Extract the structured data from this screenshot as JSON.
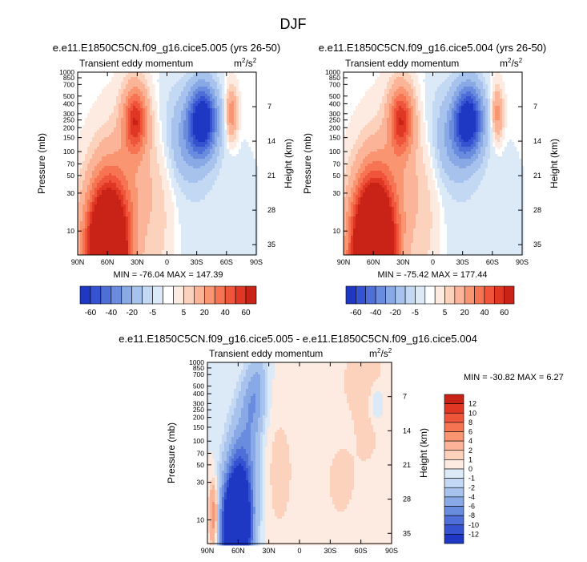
{
  "figure": {
    "title": "DJF",
    "quantity_label": "Transient eddy momentum",
    "units_base": "m",
    "units_exp1": "2",
    "units_sep": "/s",
    "units_exp2": "2"
  },
  "colors": {
    "pos": [
      "#fdeae0",
      "#fcd2bd",
      "#fcb498",
      "#fa9572",
      "#f67452",
      "#ef553b",
      "#e03725",
      "#c92318",
      "#aa1510",
      "#8b0a06"
    ],
    "neg": [
      "#dceaf8",
      "#c2d8f3",
      "#a6c2ed",
      "#88a8e6",
      "#6a8cde",
      "#4f6fd8",
      "#3553d1",
      "#1e38c4",
      "#0f22a8",
      "#04148c"
    ],
    "zero": "#ffffff"
  },
  "chart_data": [
    {
      "type": "contour",
      "id": "a",
      "title": "e.e11.E1850C5CN.f09_g16.cice5.005 (yrs 26-50)",
      "ylabel": "Pressure (mb)",
      "ylabel_right": "Height (km)",
      "xlim": [
        90,
        -90
      ],
      "ylim": [
        1000,
        5
      ],
      "yscale": "log",
      "xticks": [
        {
          "v": 90,
          "l": "90N"
        },
        {
          "v": 60,
          "l": "60N"
        },
        {
          "v": 30,
          "l": "30N"
        },
        {
          "v": 0,
          "l": "0"
        },
        {
          "v": -30,
          "l": "30S"
        },
        {
          "v": -60,
          "l": "60S"
        },
        {
          "v": -90,
          "l": "90S"
        }
      ],
      "yticks": [
        10,
        30,
        50,
        70,
        100,
        150,
        200,
        250,
        300,
        400,
        500,
        700,
        850,
        1000
      ],
      "yticks_right": [
        {
          "km": 35,
          "l": "35"
        },
        {
          "km": 28,
          "l": "28"
        },
        {
          "km": 21,
          "l": "21"
        },
        {
          "km": 14,
          "l": "14"
        },
        {
          "km": 7,
          "l": "7"
        }
      ],
      "min": -76.04,
      "max": 147.39,
      "stats_text": "MIN = -76.04   MAX = 147.39",
      "levels": [
        -60,
        -50,
        -40,
        -30,
        -20,
        -10,
        -5,
        -1,
        1,
        5,
        10,
        20,
        30,
        40,
        50,
        60
      ],
      "features": [
        {
          "lat": 60,
          "p": 5,
          "amp": 150,
          "sx": 14,
          "sy": 1.35
        },
        {
          "lat": 35,
          "p": 40,
          "amp": 14,
          "sx": 20,
          "sy": 1.4
        },
        {
          "lat": 32,
          "p": 250,
          "amp": 55,
          "sx": 8,
          "sy": 0.65
        },
        {
          "lat": -36,
          "p": 250,
          "amp": -76,
          "sx": 10,
          "sy": 0.7
        },
        {
          "lat": -20,
          "p": 130,
          "amp": -18,
          "sx": 12,
          "sy": 0.8
        },
        {
          "lat": -65,
          "p": 300,
          "amp": 28,
          "sx": 4,
          "sy": 0.5
        },
        {
          "lat": 5,
          "p": 8,
          "amp": 5,
          "sx": 12,
          "sy": 1.5
        },
        {
          "lat": -40,
          "p": 15,
          "amp": -4,
          "sx": 35,
          "sy": 1.8
        },
        {
          "lat": -5,
          "p": 400,
          "amp": -4,
          "sx": 12,
          "sy": 1.0
        }
      ],
      "colorbar": {
        "ticks": [
          "-60",
          "-40",
          "-20",
          "-5",
          "5",
          "20",
          "40",
          "60"
        ]
      }
    },
    {
      "type": "contour",
      "id": "b",
      "title": "e.e11.E1850C5CN.f09_g16.cice5.004 (yrs 26-50)",
      "ylabel": "Pressure (mb)",
      "ylabel_right": "Height (km)",
      "xlim": [
        90,
        -90
      ],
      "ylim": [
        1000,
        5
      ],
      "yscale": "log",
      "xticks": [
        {
          "v": 90,
          "l": "90N"
        },
        {
          "v": 60,
          "l": "60N"
        },
        {
          "v": 30,
          "l": "30N"
        },
        {
          "v": 0,
          "l": "0"
        },
        {
          "v": -30,
          "l": "30S"
        },
        {
          "v": -60,
          "l": "60S"
        },
        {
          "v": -90,
          "l": "90S"
        }
      ],
      "yticks": [
        10,
        30,
        50,
        70,
        100,
        150,
        200,
        250,
        300,
        400,
        500,
        700,
        850,
        1000
      ],
      "yticks_right": [
        {
          "km": 35,
          "l": "35"
        },
        {
          "km": 28,
          "l": "28"
        },
        {
          "km": 21,
          "l": "21"
        },
        {
          "km": 14,
          "l": "14"
        },
        {
          "km": 7,
          "l": "7"
        }
      ],
      "min": -75.42,
      "max": 177.44,
      "stats_text": "MIN = -75.42   MAX = 177.44",
      "levels": [
        -60,
        -50,
        -40,
        -30,
        -20,
        -10,
        -5,
        -1,
        1,
        5,
        10,
        20,
        30,
        40,
        50,
        60
      ],
      "features": [
        {
          "lat": 60,
          "p": 5,
          "amp": 177,
          "sx": 14,
          "sy": 1.35
        },
        {
          "lat": 35,
          "p": 40,
          "amp": 14,
          "sx": 20,
          "sy": 1.4
        },
        {
          "lat": 32,
          "p": 250,
          "amp": 55,
          "sx": 8,
          "sy": 0.65
        },
        {
          "lat": -36,
          "p": 250,
          "amp": -75,
          "sx": 10,
          "sy": 0.7
        },
        {
          "lat": -20,
          "p": 130,
          "amp": -18,
          "sx": 12,
          "sy": 0.8
        },
        {
          "lat": -65,
          "p": 300,
          "amp": 25,
          "sx": 4,
          "sy": 0.5
        },
        {
          "lat": 5,
          "p": 8,
          "amp": 5,
          "sx": 12,
          "sy": 1.5
        },
        {
          "lat": -40,
          "p": 15,
          "amp": -4,
          "sx": 35,
          "sy": 1.8
        },
        {
          "lat": -5,
          "p": 400,
          "amp": -4,
          "sx": 12,
          "sy": 1.0
        }
      ],
      "colorbar": {
        "ticks": [
          "-60",
          "-40",
          "-20",
          "-5",
          "5",
          "20",
          "40",
          "60"
        ]
      }
    },
    {
      "type": "contour",
      "id": "c",
      "title": "e.e11.E1850C5CN.f09_g16.cice5.005 - e.e11.E1850C5CN.f09_g16.cice5.004",
      "ylabel": "Pressure (mb)",
      "ylabel_right": "Height (km)",
      "xlim": [
        90,
        -90
      ],
      "ylim": [
        1000,
        5
      ],
      "yscale": "log",
      "xticks": [
        {
          "v": 90,
          "l": "90N"
        },
        {
          "v": 60,
          "l": "60N"
        },
        {
          "v": 30,
          "l": "30N"
        },
        {
          "v": 0,
          "l": "0"
        },
        {
          "v": -30,
          "l": "30S"
        },
        {
          "v": -60,
          "l": "60S"
        },
        {
          "v": -90,
          "l": "90S"
        }
      ],
      "yticks": [
        10,
        30,
        50,
        70,
        100,
        150,
        200,
        250,
        300,
        400,
        500,
        700,
        850,
        1000
      ],
      "yticks_right": [
        {
          "km": 35,
          "l": "35"
        },
        {
          "km": 28,
          "l": "28"
        },
        {
          "km": 21,
          "l": "21"
        },
        {
          "km": 14,
          "l": "14"
        },
        {
          "km": 7,
          "l": "7"
        }
      ],
      "min": -30.82,
      "max": 6.27,
      "stats_text": "MIN = -30.82  MAX =  6.27",
      "levels": [
        -12,
        -10,
        -8,
        -6,
        -4,
        -2,
        -1,
        0,
        1,
        2,
        4,
        6,
        8,
        10,
        12
      ],
      "features": [
        {
          "lat": 84,
          "p": 11,
          "amp": 6.3,
          "sx": 3,
          "sy": 0.7
        },
        {
          "lat": 62,
          "p": 7,
          "amp": -30,
          "sx": 9,
          "sy": 1.1
        },
        {
          "lat": 55,
          "p": 40,
          "amp": -7,
          "sx": 10,
          "sy": 1.2
        },
        {
          "lat": 45,
          "p": 300,
          "amp": -5,
          "sx": 8,
          "sy": 0.7
        },
        {
          "lat": 40,
          "p": 700,
          "amp": -2,
          "sx": 6,
          "sy": 0.5
        },
        {
          "lat": 20,
          "p": 40,
          "amp": 1.5,
          "sx": 12,
          "sy": 1.5
        },
        {
          "lat": -40,
          "p": 30,
          "amp": 1.2,
          "sx": 18,
          "sy": 1.4
        },
        {
          "lat": -70,
          "p": 200,
          "amp": 1.1,
          "sx": 10,
          "sy": 1.2
        },
        {
          "lat": -60,
          "p": 700,
          "amp": 1.2,
          "sx": 20,
          "sy": 0.9
        },
        {
          "lat": -75,
          "p": 300,
          "amp": -2.5,
          "sx": 5,
          "sy": 0.4
        }
      ],
      "colorbar": {
        "ticks": [
          "12",
          "10",
          "8",
          "6",
          "4",
          "2",
          "1",
          "0",
          "-1",
          "-2",
          "-4",
          "-6",
          "-8",
          "-10",
          "-12"
        ]
      }
    }
  ]
}
